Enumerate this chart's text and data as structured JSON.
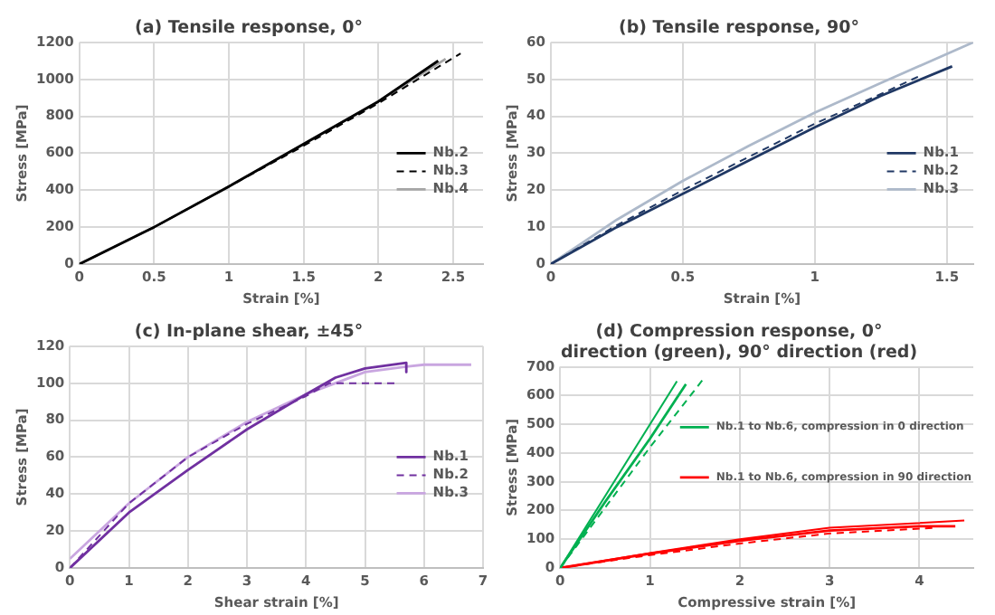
{
  "chart_data": [
    {
      "type": "line",
      "title": "(a) Tensile response, 0°",
      "xlabel": "Strain [%]",
      "ylabel": "Stress [MPa]",
      "xlim": [
        0,
        2.7
      ],
      "xticks": [
        0,
        0.5,
        1,
        1.5,
        2,
        2.5
      ],
      "ylim": [
        0,
        1200
      ],
      "yticks": [
        0,
        200,
        400,
        600,
        800,
        1000,
        1200
      ],
      "grid": true,
      "legend": "right",
      "series": [
        {
          "name": "Nb.2",
          "color": "#000000",
          "line_style": "solid",
          "x": [
            0,
            0.5,
            1,
            1.5,
            2,
            2.4
          ],
          "values": [
            0,
            200,
            420,
            650,
            880,
            1100
          ]
        },
        {
          "name": "Nb.3",
          "color": "#000000",
          "line_style": "dashed",
          "x": [
            0,
            0.5,
            1,
            1.5,
            2,
            2.55
          ],
          "values": [
            0,
            200,
            420,
            640,
            870,
            1140
          ]
        },
        {
          "name": "Nb.4",
          "color": "#a6a6a6",
          "line_style": "solid",
          "x": [
            0,
            0.5,
            1,
            1.5,
            2,
            2.45
          ],
          "values": [
            0,
            200,
            420,
            650,
            880,
            1110
          ]
        }
      ]
    },
    {
      "type": "line",
      "title": "(b) Tensile response, 90°",
      "xlabel": "Strain [%]",
      "ylabel": "Stress [MPa]",
      "xlim": [
        0,
        1.6
      ],
      "xticks": [
        0,
        0.5,
        1,
        1.5
      ],
      "ylim": [
        0,
        60
      ],
      "yticks": [
        0,
        10,
        20,
        30,
        40,
        50,
        60
      ],
      "grid": true,
      "legend": "right",
      "series": [
        {
          "name": "Nb.1",
          "color": "#203864",
          "line_style": "solid",
          "x": [
            0,
            0.25,
            0.5,
            0.75,
            1,
            1.25,
            1.52
          ],
          "values": [
            0,
            10,
            19,
            28,
            37,
            45.5,
            53.5
          ]
        },
        {
          "name": "Nb.2",
          "color": "#203864",
          "line_style": "dashed",
          "x": [
            0,
            0.25,
            0.5,
            0.75,
            1,
            1.25,
            1.4
          ],
          "values": [
            0,
            10.5,
            20,
            29,
            38,
            46,
            51
          ]
        },
        {
          "name": "Nb.3",
          "color": "#adb9ca",
          "line_style": "solid",
          "x": [
            0,
            0.25,
            0.5,
            0.75,
            1,
            1.25,
            1.6
          ],
          "values": [
            0,
            12,
            22.5,
            32,
            41,
            49,
            60
          ]
        }
      ]
    },
    {
      "type": "line",
      "title": "(c) In-plane shear, ±45°",
      "xlabel": "Shear strain [%]",
      "ylabel": "Stress [MPa]",
      "xlim": [
        0,
        7
      ],
      "xticks": [
        0,
        1,
        2,
        3,
        4,
        5,
        6,
        7
      ],
      "ylim": [
        0,
        120
      ],
      "yticks": [
        0,
        20,
        40,
        60,
        80,
        100,
        120
      ],
      "grid": true,
      "legend": "right",
      "series": [
        {
          "name": "Nb.1",
          "color": "#7030a0",
          "line_style": "solid",
          "x": [
            0,
            1,
            2,
            3,
            4,
            4.5,
            5,
            5.7,
            5.7
          ],
          "values": [
            0,
            30,
            53,
            75,
            94,
            103,
            108,
            111,
            106
          ]
        },
        {
          "name": "Nb.2",
          "color": "#7030a0",
          "line_style": "dashed",
          "x": [
            0,
            1,
            2,
            3,
            4,
            4.4,
            5.5
          ],
          "values": [
            0,
            35,
            60,
            78,
            93,
            100,
            100
          ]
        },
        {
          "name": "Nb.3",
          "color": "#c9a6e0",
          "line_style": "solid",
          "x": [
            0,
            1,
            2,
            3,
            4,
            5,
            5.7,
            6,
            6.8
          ],
          "values": [
            5,
            35,
            60,
            79,
            94,
            106,
            109,
            110,
            110
          ]
        }
      ]
    },
    {
      "type": "line",
      "title": "(d) Compression response, 0° direction (green), 90° direction (red)",
      "xlabel": "Compressive strain [%]",
      "ylabel": "Stress [MPa]",
      "xlim": [
        0,
        4.6
      ],
      "xticks": [
        0,
        1,
        2,
        3,
        4
      ],
      "ylim": [
        0,
        700
      ],
      "yticks": [
        0,
        100,
        200,
        300,
        400,
        500,
        600,
        700
      ],
      "grid": true,
      "legend": "right",
      "series": [
        {
          "name": "Nb.1 to Nb.6, compression in 0 direction",
          "color": "#00b050",
          "line_style": "solid",
          "x": [
            0,
            0.5,
            1,
            1.4
          ],
          "values": [
            0,
            230,
            450,
            640
          ]
        },
        {
          "color": "#00b050",
          "line_style": "solid",
          "x": [
            0,
            1.3
          ],
          "values": [
            0,
            650
          ]
        },
        {
          "color": "#00b050",
          "line_style": "dashed",
          "x": [
            0,
            1,
            1.6
          ],
          "values": [
            0,
            420,
            660
          ]
        },
        {
          "name": "Nb.1 to Nb.6, compression in 90 direction",
          "color": "#ff0000",
          "line_style": "solid",
          "x": [
            0,
            1,
            2,
            3,
            4,
            4.4
          ],
          "values": [
            0,
            50,
            95,
            130,
            145,
            145
          ]
        },
        {
          "color": "#ff0000",
          "line_style": "solid",
          "x": [
            0,
            1,
            2,
            3,
            4.5
          ],
          "values": [
            0,
            52,
            100,
            140,
            165
          ]
        },
        {
          "color": "#ff0000",
          "line_style": "dashed",
          "x": [
            0,
            1,
            2,
            3,
            4.2
          ],
          "values": [
            0,
            45,
            85,
            120,
            140
          ]
        }
      ]
    }
  ]
}
